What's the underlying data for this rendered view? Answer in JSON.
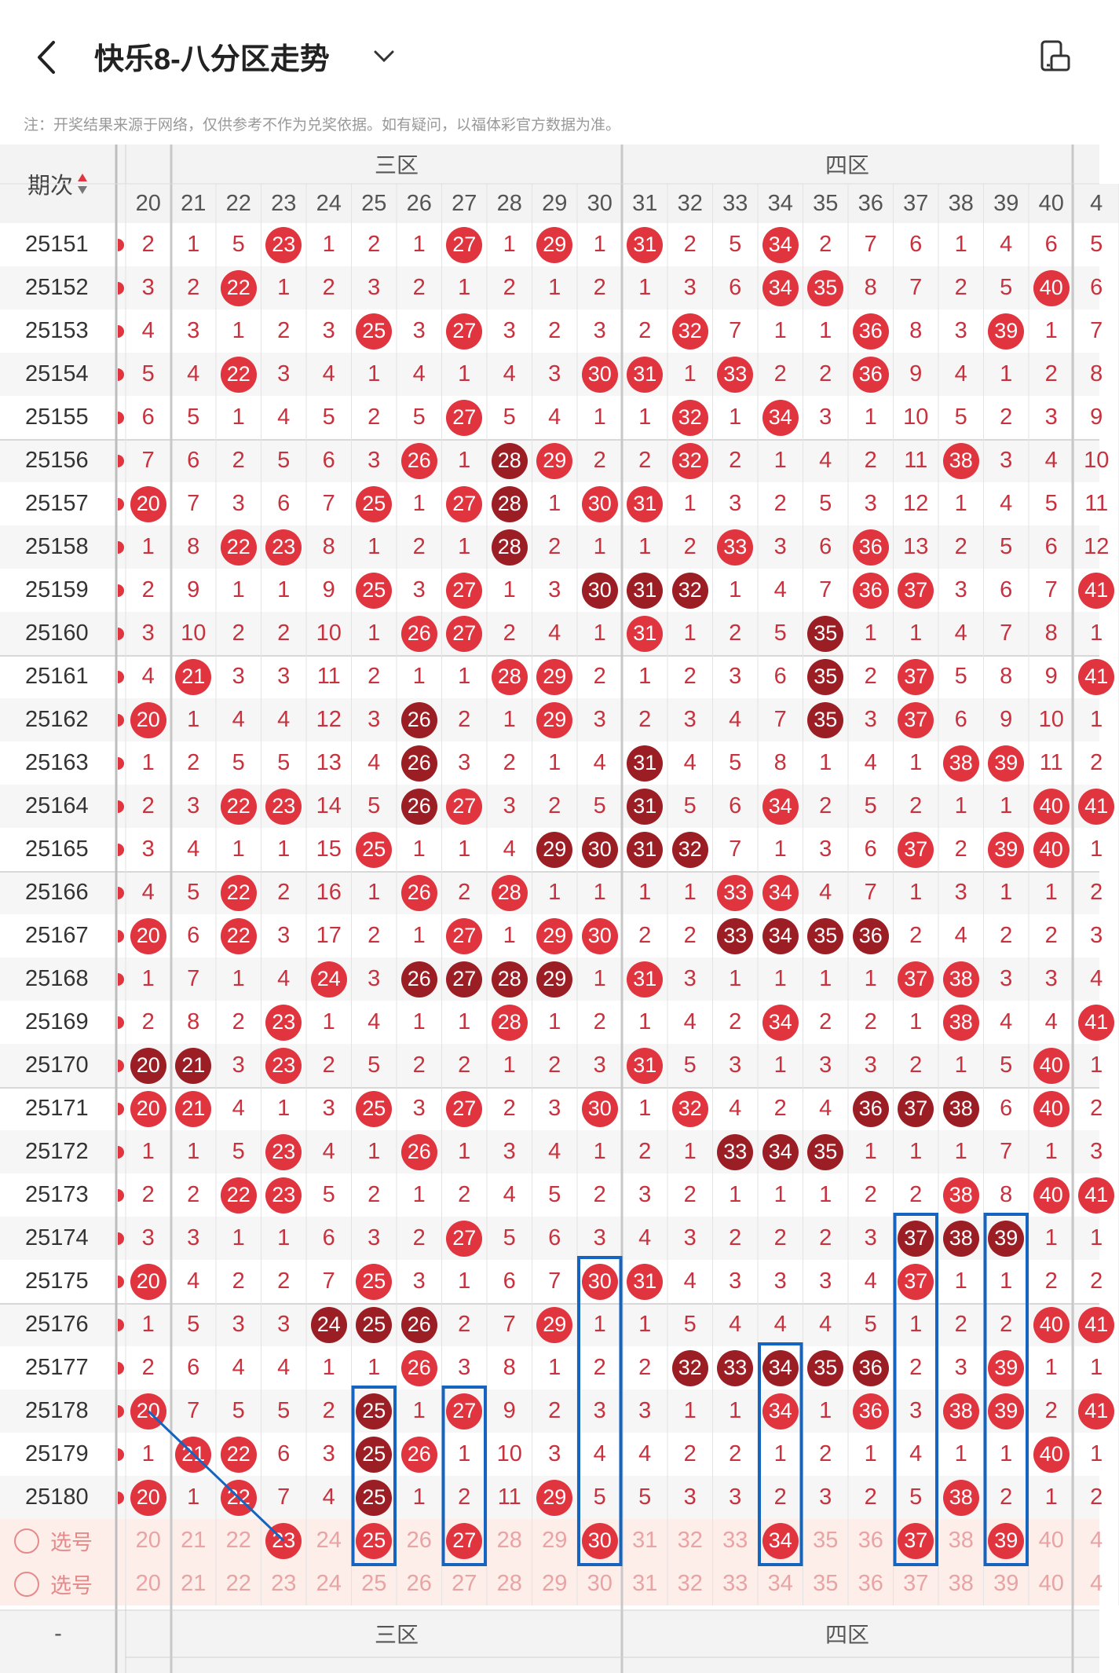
{
  "header": {
    "title": "快乐8-八分区走势",
    "back_icon": "chevron-left-icon",
    "dropdown_icon": "chevron-down-icon",
    "screen_icon": "screen-toggle-icon"
  },
  "note": "注：开奖结果来源于网络，仅供参考不作为兑奖依据。如有疑问，以福体彩官方数据为准。",
  "table": {
    "period_header": "期次",
    "sort_icon": "sort-updown-icon",
    "zones": [
      "三区",
      "四区"
    ],
    "columns": [
      20,
      21,
      22,
      23,
      24,
      25,
      26,
      27,
      28,
      29,
      30,
      31,
      32,
      33,
      34,
      35,
      36,
      37,
      38,
      39,
      40
    ],
    "partial_next_column": "4",
    "select_label": "选号",
    "footer_left": "-",
    "rows": [
      {
        "issue": "25151",
        "cells": [
          "2",
          "1",
          "5",
          "23",
          "1",
          "2",
          "1",
          "27",
          "1",
          "29",
          "1",
          "31",
          "2",
          "5",
          "34",
          "2",
          "7",
          "6",
          "1",
          "4",
          "6",
          "5"
        ]
      },
      {
        "issue": "25152",
        "cells": [
          "3",
          "2",
          "22",
          "1",
          "2",
          "3",
          "2",
          "1",
          "2",
          "1",
          "2",
          "1",
          "3",
          "6",
          "34",
          "35",
          "8",
          "7",
          "2",
          "5",
          "40",
          "6"
        ]
      },
      {
        "issue": "25153",
        "cells": [
          "4",
          "3",
          "1",
          "2",
          "3",
          "25",
          "3",
          "27",
          "3",
          "2",
          "3",
          "2",
          "32",
          "7",
          "1",
          "1",
          "36",
          "8",
          "3",
          "39",
          "1",
          "7"
        ]
      },
      {
        "issue": "25154",
        "cells": [
          "5",
          "4",
          "22",
          "3",
          "4",
          "1",
          "4",
          "1",
          "4",
          "3",
          "30",
          "31",
          "1",
          "33",
          "2",
          "2",
          "36",
          "9",
          "4",
          "1",
          "2",
          "8"
        ]
      },
      {
        "issue": "25155",
        "cells": [
          "6",
          "5",
          "1",
          "4",
          "5",
          "2",
          "5",
          "27",
          "5",
          "4",
          "1",
          "1",
          "32",
          "1",
          "34",
          "3",
          "1",
          "10",
          "5",
          "2",
          "3",
          "9"
        ]
      },
      {
        "issue": "25156",
        "cells": [
          "7",
          "6",
          "2",
          "5",
          "6",
          "3",
          "26",
          "1",
          "28",
          "29",
          "2",
          "2",
          "32",
          "2",
          "1",
          "4",
          "2",
          "11",
          "38",
          "3",
          "4",
          "10"
        ]
      },
      {
        "issue": "25157",
        "cells": [
          "20",
          "7",
          "3",
          "6",
          "7",
          "25",
          "1",
          "27",
          "28",
          "1",
          "30",
          "31",
          "1",
          "3",
          "2",
          "5",
          "3",
          "12",
          "1",
          "4",
          "5",
          "11"
        ]
      },
      {
        "issue": "25158",
        "cells": [
          "1",
          "8",
          "22",
          "23",
          "8",
          "1",
          "2",
          "1",
          "28",
          "2",
          "1",
          "1",
          "2",
          "33",
          "3",
          "6",
          "36",
          "13",
          "2",
          "5",
          "6",
          "12"
        ]
      },
      {
        "issue": "25159",
        "cells": [
          "2",
          "9",
          "1",
          "1",
          "9",
          "25",
          "3",
          "27",
          "1",
          "3",
          "30",
          "31",
          "32",
          "1",
          "4",
          "7",
          "36",
          "37",
          "3",
          "6",
          "7",
          "41"
        ]
      },
      {
        "issue": "25160",
        "cells": [
          "3",
          "10",
          "2",
          "2",
          "10",
          "1",
          "26",
          "27",
          "2",
          "4",
          "1",
          "31",
          "1",
          "2",
          "5",
          "35",
          "1",
          "1",
          "4",
          "7",
          "8",
          "1"
        ]
      },
      {
        "issue": "25161",
        "cells": [
          "4",
          "21",
          "3",
          "3",
          "11",
          "2",
          "1",
          "1",
          "28",
          "29",
          "2",
          "1",
          "2",
          "3",
          "6",
          "35",
          "2",
          "37",
          "5",
          "8",
          "9",
          "41"
        ]
      },
      {
        "issue": "25162",
        "cells": [
          "20",
          "1",
          "4",
          "4",
          "12",
          "3",
          "26",
          "2",
          "1",
          "29",
          "3",
          "2",
          "3",
          "4",
          "7",
          "35",
          "3",
          "37",
          "6",
          "9",
          "10",
          "1"
        ]
      },
      {
        "issue": "25163",
        "cells": [
          "1",
          "2",
          "5",
          "5",
          "13",
          "4",
          "26",
          "3",
          "2",
          "1",
          "4",
          "31",
          "4",
          "5",
          "8",
          "1",
          "4",
          "1",
          "38",
          "39",
          "11",
          "2"
        ]
      },
      {
        "issue": "25164",
        "cells": [
          "2",
          "3",
          "22",
          "23",
          "14",
          "5",
          "26",
          "27",
          "3",
          "2",
          "5",
          "31",
          "5",
          "6",
          "34",
          "2",
          "5",
          "2",
          "1",
          "1",
          "40",
          "41"
        ]
      },
      {
        "issue": "25165",
        "cells": [
          "3",
          "4",
          "1",
          "1",
          "15",
          "25",
          "1",
          "1",
          "4",
          "29",
          "30",
          "31",
          "32",
          "7",
          "1",
          "3",
          "6",
          "37",
          "2",
          "39",
          "40",
          "1"
        ]
      },
      {
        "issue": "25166",
        "cells": [
          "4",
          "5",
          "22",
          "2",
          "16",
          "1",
          "26",
          "2",
          "28",
          "1",
          "1",
          "1",
          "1",
          "33",
          "34",
          "4",
          "7",
          "1",
          "3",
          "1",
          "1",
          "2"
        ]
      },
      {
        "issue": "25167",
        "cells": [
          "20",
          "6",
          "22",
          "3",
          "17",
          "2",
          "1",
          "27",
          "1",
          "29",
          "30",
          "2",
          "2",
          "33",
          "34",
          "35",
          "36",
          "2",
          "4",
          "2",
          "2",
          "3"
        ]
      },
      {
        "issue": "25168",
        "cells": [
          "1",
          "7",
          "1",
          "4",
          "24",
          "3",
          "26",
          "27",
          "28",
          "29",
          "1",
          "31",
          "3",
          "1",
          "1",
          "1",
          "1",
          "37",
          "38",
          "3",
          "3",
          "4"
        ]
      },
      {
        "issue": "25169",
        "cells": [
          "2",
          "8",
          "2",
          "23",
          "1",
          "4",
          "1",
          "1",
          "28",
          "1",
          "2",
          "1",
          "4",
          "2",
          "34",
          "2",
          "2",
          "1",
          "38",
          "4",
          "4",
          "41"
        ]
      },
      {
        "issue": "25170",
        "cells": [
          "20",
          "21",
          "3",
          "23",
          "2",
          "5",
          "2",
          "2",
          "1",
          "2",
          "3",
          "31",
          "5",
          "3",
          "1",
          "3",
          "3",
          "2",
          "1",
          "5",
          "40",
          "1"
        ]
      },
      {
        "issue": "25171",
        "cells": [
          "20",
          "21",
          "4",
          "1",
          "3",
          "25",
          "3",
          "27",
          "2",
          "3",
          "30",
          "1",
          "32",
          "4",
          "2",
          "4",
          "36",
          "37",
          "38",
          "6",
          "40",
          "2"
        ]
      },
      {
        "issue": "25172",
        "cells": [
          "1",
          "1",
          "5",
          "23",
          "4",
          "1",
          "26",
          "1",
          "3",
          "4",
          "1",
          "2",
          "1",
          "33",
          "34",
          "35",
          "1",
          "1",
          "1",
          "7",
          "1",
          "3"
        ]
      },
      {
        "issue": "25173",
        "cells": [
          "2",
          "2",
          "22",
          "23",
          "5",
          "2",
          "1",
          "2",
          "4",
          "5",
          "2",
          "3",
          "2",
          "1",
          "1",
          "1",
          "2",
          "2",
          "38",
          "8",
          "40",
          "41"
        ]
      },
      {
        "issue": "25174",
        "cells": [
          "3",
          "3",
          "1",
          "1",
          "6",
          "3",
          "2",
          "27",
          "5",
          "6",
          "3",
          "4",
          "3",
          "2",
          "2",
          "2",
          "3",
          "37",
          "38",
          "39",
          "1",
          "1"
        ]
      },
      {
        "issue": "25175",
        "cells": [
          "20",
          "4",
          "2",
          "2",
          "7",
          "25",
          "3",
          "1",
          "6",
          "7",
          "30",
          "31",
          "4",
          "3",
          "3",
          "3",
          "4",
          "37",
          "1",
          "1",
          "2",
          "2"
        ]
      },
      {
        "issue": "25176",
        "cells": [
          "1",
          "5",
          "3",
          "3",
          "24",
          "25",
          "26",
          "2",
          "7",
          "29",
          "1",
          "1",
          "5",
          "4",
          "4",
          "4",
          "5",
          "1",
          "2",
          "2",
          "40",
          "41"
        ]
      },
      {
        "issue": "25177",
        "cells": [
          "2",
          "6",
          "4",
          "4",
          "1",
          "1",
          "26",
          "3",
          "8",
          "1",
          "2",
          "2",
          "32",
          "33",
          "34",
          "35",
          "36",
          "2",
          "3",
          "39",
          "1",
          "1"
        ]
      },
      {
        "issue": "25178",
        "cells": [
          "20",
          "7",
          "5",
          "5",
          "2",
          "25",
          "1",
          "27",
          "9",
          "2",
          "3",
          "3",
          "1",
          "1",
          "34",
          "1",
          "36",
          "3",
          "38",
          "39",
          "2",
          "41"
        ]
      },
      {
        "issue": "25179",
        "cells": [
          "1",
          "21",
          "22",
          "6",
          "3",
          "25",
          "26",
          "1",
          "10",
          "3",
          "4",
          "4",
          "2",
          "2",
          "1",
          "2",
          "1",
          "4",
          "1",
          "1",
          "40",
          "1"
        ]
      },
      {
        "issue": "25180",
        "cells": [
          "20",
          "1",
          "22",
          "7",
          "4",
          "25",
          "1",
          "2",
          "11",
          "29",
          "5",
          "5",
          "3",
          "3",
          "2",
          "3",
          "2",
          "5",
          "38",
          "2",
          "1",
          "2"
        ]
      }
    ],
    "select_rows": [
      {
        "label": "选号",
        "hits": [
          "23",
          "25",
          "27",
          "30",
          "34",
          "37",
          "39"
        ]
      },
      {
        "label": "选号",
        "hits": []
      }
    ],
    "dark_balls": [
      "25156-28",
      "25157-28",
      "25158-28",
      "25159-30",
      "25159-31",
      "25159-32",
      "25160-35",
      "25161-35",
      "25162-26",
      "25162-35",
      "25163-26",
      "25163-31",
      "25164-26",
      "25164-31",
      "25165-29",
      "25165-30",
      "25165-31",
      "25165-32",
      "25167-33",
      "25167-34",
      "25167-35",
      "25167-36",
      "25168-26",
      "25168-27",
      "25168-28",
      "25168-29",
      "25170-20",
      "25170-21",
      "25171-36",
      "25171-37",
      "25171-38",
      "25172-33",
      "25172-34",
      "25172-35",
      "25174-37",
      "25174-38",
      "25174-39",
      "25176-24",
      "25176-25",
      "25176-26",
      "25177-32",
      "25177-33",
      "25177-34",
      "25177-35",
      "25177-36",
      "25178-25",
      "25179-25",
      "25180-25"
    ],
    "colors": {
      "ball_red": "#e0343f",
      "ball_dark": "#9b1e24",
      "value": "#c8323e",
      "highlight_box": "#1565c0",
      "select_bg": "#fdeeea",
      "header_bg": "#f3f3f3"
    }
  }
}
